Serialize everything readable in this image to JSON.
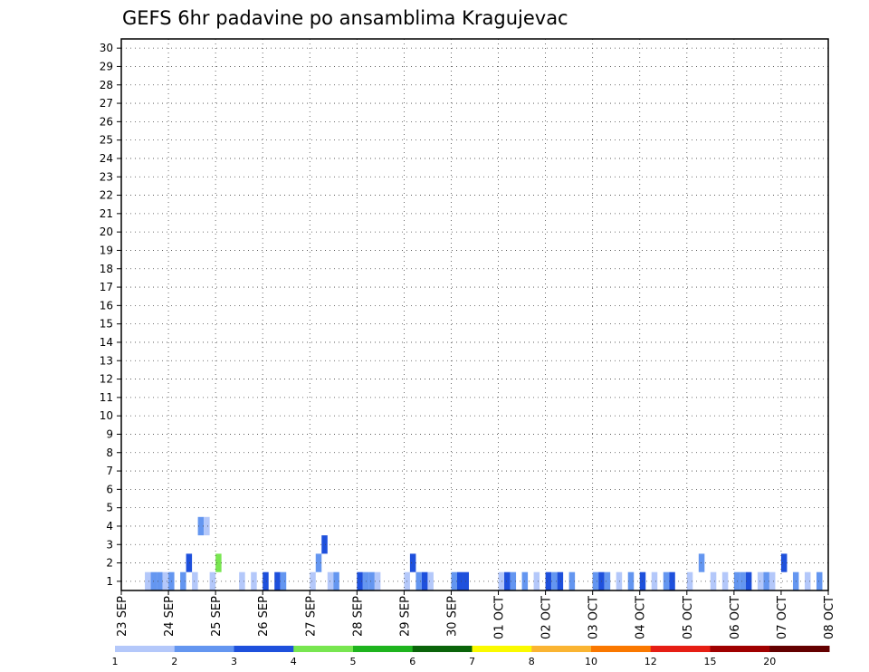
{
  "chart_data": {
    "type": "heatmap",
    "title": "GEFS 6hr padavine po ansamblima Kragujevac",
    "xlabel": "",
    "ylabel": "",
    "grid": true,
    "x_ticks": [
      "23 SEP",
      "24 SEP",
      "25 SEP",
      "26 SEP",
      "27 SEP",
      "28 SEP",
      "29 SEP",
      "30 SEP",
      "01 OCT",
      "02 OCT",
      "03 OCT",
      "04 OCT",
      "05 OCT",
      "06 OCT",
      "07 OCT",
      "08 OCT"
    ],
    "x_range_days": [
      0,
      15
    ],
    "y_ticks": [
      "1",
      "2",
      "3",
      "4",
      "5",
      "6",
      "7",
      "8",
      "9",
      "10",
      "11",
      "12",
      "13",
      "14",
      "15",
      "16",
      "17",
      "18",
      "19",
      "20",
      "21",
      "22",
      "23",
      "24",
      "25",
      "26",
      "27",
      "28",
      "29",
      "30"
    ],
    "y_range": [
      0.5,
      30.5
    ],
    "legend_labels": [
      "1",
      "2",
      "3",
      "4",
      "5",
      "6",
      "7",
      "8",
      "10",
      "12",
      "15",
      "20"
    ],
    "legend_placement": "bottom",
    "colors": [
      "#b4c8fa",
      "#6496f0",
      "#1e50dc",
      "#78e650",
      "#1eb41e",
      "#0a640a",
      "#fafa00",
      "#fab432",
      "#fa7800",
      "#e61e14",
      "#a00000",
      "#640000"
    ],
    "cells": [
      [
        0.5,
        1,
        0
      ],
      [
        0.625,
        1,
        1
      ],
      [
        0.75,
        1,
        1
      ],
      [
        0.875,
        1,
        0
      ],
      [
        1.0,
        1,
        1
      ],
      [
        1.25,
        1,
        1
      ],
      [
        1.375,
        2,
        2
      ],
      [
        1.5,
        1,
        0
      ],
      [
        1.625,
        4,
        1
      ],
      [
        1.75,
        4,
        0
      ],
      [
        1.875,
        1,
        0
      ],
      [
        2.0,
        2,
        3
      ],
      [
        2.5,
        1,
        0
      ],
      [
        2.75,
        1,
        0
      ],
      [
        3.0,
        1,
        2
      ],
      [
        3.25,
        1,
        2
      ],
      [
        3.375,
        1,
        1
      ],
      [
        4.0,
        1,
        0
      ],
      [
        4.125,
        2,
        1
      ],
      [
        4.25,
        3,
        2
      ],
      [
        4.375,
        1,
        0
      ],
      [
        4.5,
        1,
        1
      ],
      [
        5.0,
        1,
        2
      ],
      [
        5.125,
        1,
        1
      ],
      [
        5.25,
        1,
        1
      ],
      [
        5.375,
        1,
        0
      ],
      [
        6.0,
        1,
        0
      ],
      [
        6.125,
        2,
        2
      ],
      [
        6.25,
        1,
        1
      ],
      [
        6.375,
        1,
        2
      ],
      [
        6.5,
        1,
        0
      ],
      [
        7.0,
        1,
        1
      ],
      [
        7.125,
        1,
        2
      ],
      [
        7.25,
        1,
        2
      ],
      [
        8.0,
        1,
        0
      ],
      [
        8.125,
        1,
        2
      ],
      [
        8.25,
        1,
        1
      ],
      [
        8.5,
        1,
        1
      ],
      [
        8.75,
        1,
        0
      ],
      [
        9.0,
        1,
        2
      ],
      [
        9.125,
        1,
        1
      ],
      [
        9.25,
        1,
        2
      ],
      [
        9.5,
        1,
        1
      ],
      [
        10.0,
        1,
        1
      ],
      [
        10.125,
        1,
        2
      ],
      [
        10.25,
        1,
        1
      ],
      [
        10.5,
        1,
        0
      ],
      [
        10.75,
        1,
        1
      ],
      [
        11.0,
        1,
        2
      ],
      [
        11.25,
        1,
        0
      ],
      [
        11.5,
        1,
        1
      ],
      [
        11.625,
        1,
        2
      ],
      [
        12.0,
        1,
        0
      ],
      [
        12.25,
        2,
        1
      ],
      [
        12.5,
        1,
        0
      ],
      [
        12.75,
        1,
        0
      ],
      [
        13.0,
        1,
        1
      ],
      [
        13.125,
        1,
        1
      ],
      [
        13.25,
        1,
        2
      ],
      [
        13.5,
        1,
        0
      ],
      [
        13.625,
        1,
        1
      ],
      [
        13.75,
        1,
        0
      ],
      [
        14.0,
        2,
        2
      ],
      [
        14.25,
        1,
        1
      ],
      [
        14.5,
        1,
        0
      ],
      [
        14.75,
        1,
        1
      ]
    ]
  }
}
